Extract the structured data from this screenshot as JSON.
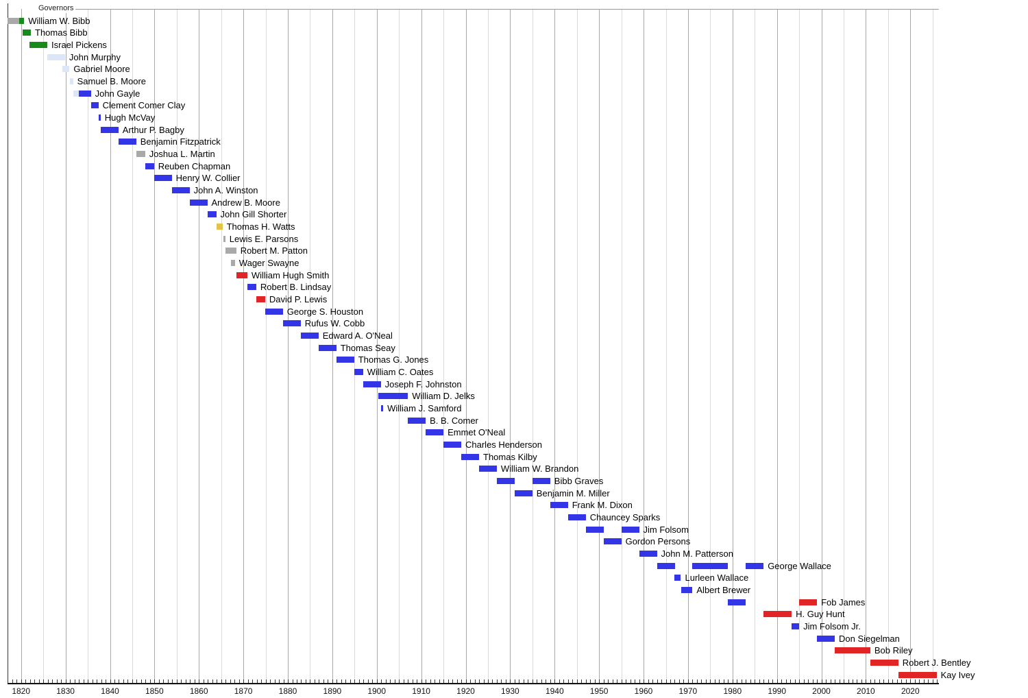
{
  "chart_data": {
    "type": "bar",
    "subtype": "timeline-gantt",
    "title": "Governors",
    "unit": "year",
    "x_axis": {
      "min": 1817,
      "max": 2026.5,
      "gridline_step_years": 5,
      "minor_tick_step_years": 1,
      "major_tick_labels": [
        "1820",
        "1830",
        "1840",
        "1850",
        "1860",
        "1870",
        "1880",
        "1890",
        "1900",
        "1910",
        "1920",
        "1930",
        "1940",
        "1950",
        "1960",
        "1970",
        "1980",
        "1990",
        "2000",
        "2010",
        "2020"
      ]
    },
    "bar_colors": {
      "blue": "#3535e8",
      "red": "#e12424",
      "green": "#1a8a1a",
      "gray": "#a9a9a9",
      "lightblue": "#dce6f7",
      "yellow": "#e2c449"
    },
    "legend_position": "none",
    "grid": "on",
    "rows": [
      {
        "name": "William W. Bibb",
        "segments": [
          [
            1817.0,
            1819.6,
            "gray"
          ],
          [
            1819.6,
            1820.7,
            "green"
          ]
        ]
      },
      {
        "name": "Thomas Bibb",
        "segments": [
          [
            1820.4,
            1822.2,
            "green"
          ]
        ]
      },
      {
        "name": "Israel Pickens",
        "segments": [
          [
            1821.9,
            1825.9,
            "green"
          ]
        ]
      },
      {
        "name": "John Murphy",
        "segments": [
          [
            1825.9,
            1829.9,
            "lightblue"
          ]
        ]
      },
      {
        "name": "Gabriel Moore",
        "segments": [
          [
            1829.3,
            1830.9,
            "lightblue"
          ]
        ]
      },
      {
        "name": "Samuel B. Moore",
        "segments": [
          [
            1831.0,
            1831.7,
            "lightblue"
          ]
        ]
      },
      {
        "name": "John Gayle",
        "segments": [
          [
            1831.7,
            1833.0,
            "lightblue"
          ],
          [
            1833.0,
            1835.7,
            "blue"
          ]
        ]
      },
      {
        "name": "Clement Comer Clay",
        "segments": [
          [
            1835.7,
            1837.4,
            "blue"
          ]
        ]
      },
      {
        "name": "Hugh McVay",
        "segments": [
          [
            1837.4,
            1837.9,
            "blue"
          ]
        ]
      },
      {
        "name": "Arthur P. Bagby",
        "segments": [
          [
            1837.9,
            1841.9,
            "blue"
          ]
        ]
      },
      {
        "name": "Benjamin Fitzpatrick",
        "segments": [
          [
            1841.9,
            1845.9,
            "blue"
          ]
        ]
      },
      {
        "name": "Joshua L. Martin",
        "segments": [
          [
            1845.9,
            1847.9,
            "gray"
          ]
        ]
      },
      {
        "name": "Reuben Chapman",
        "segments": [
          [
            1847.9,
            1849.9,
            "blue"
          ]
        ]
      },
      {
        "name": "Henry W. Collier",
        "segments": [
          [
            1849.9,
            1853.9,
            "blue"
          ]
        ]
      },
      {
        "name": "John A. Winston",
        "segments": [
          [
            1853.9,
            1857.9,
            "blue"
          ]
        ]
      },
      {
        "name": "Andrew B. Moore",
        "segments": [
          [
            1857.9,
            1861.9,
            "blue"
          ]
        ]
      },
      {
        "name": "John Gill Shorter",
        "segments": [
          [
            1861.9,
            1863.9,
            "blue"
          ]
        ]
      },
      {
        "name": "Thomas H. Watts",
        "segments": [
          [
            1863.9,
            1865.3,
            "yellow"
          ]
        ]
      },
      {
        "name": "Lewis E. Parsons",
        "segments": [
          [
            1865.5,
            1865.95,
            "gray"
          ]
        ]
      },
      {
        "name": "Robert M. Patton",
        "segments": [
          [
            1865.95,
            1868.4,
            "gray"
          ]
        ]
      },
      {
        "name": "Wager Swayne",
        "segments": [
          [
            1867.2,
            1868.1,
            "gray"
          ]
        ]
      },
      {
        "name": "William Hugh Smith",
        "segments": [
          [
            1868.5,
            1870.9,
            "red"
          ]
        ]
      },
      {
        "name": "Robert B. Lindsay",
        "segments": [
          [
            1870.9,
            1872.9,
            "blue"
          ]
        ]
      },
      {
        "name": "David P. Lewis",
        "segments": [
          [
            1872.9,
            1874.9,
            "red"
          ]
        ]
      },
      {
        "name": "George S. Houston",
        "segments": [
          [
            1874.9,
            1878.9,
            "blue"
          ]
        ]
      },
      {
        "name": "Rufus W. Cobb",
        "segments": [
          [
            1878.9,
            1882.9,
            "blue"
          ]
        ]
      },
      {
        "name": "Edward A. O'Neal",
        "segments": [
          [
            1882.9,
            1886.9,
            "blue"
          ]
        ]
      },
      {
        "name": "Thomas Seay",
        "segments": [
          [
            1886.9,
            1890.9,
            "blue"
          ]
        ]
      },
      {
        "name": "Thomas G. Jones",
        "segments": [
          [
            1890.9,
            1894.9,
            "blue"
          ]
        ]
      },
      {
        "name": "William C. Oates",
        "segments": [
          [
            1894.9,
            1896.9,
            "blue"
          ]
        ]
      },
      {
        "name": "Joseph F. Johnston",
        "segments": [
          [
            1896.9,
            1900.9,
            "blue"
          ]
        ]
      },
      {
        "name": "William D. Jelks",
        "segments": [
          [
            1900.3,
            1907.0,
            "blue"
          ]
        ]
      },
      {
        "name": "William J. Samford",
        "segments": [
          [
            1900.9,
            1901.45,
            "blue"
          ]
        ]
      },
      {
        "name": "B. B. Comer",
        "segments": [
          [
            1907.0,
            1911.0,
            "blue"
          ]
        ]
      },
      {
        "name": "Emmet O'Neal",
        "segments": [
          [
            1911.0,
            1915.0,
            "blue"
          ]
        ]
      },
      {
        "name": "Charles Henderson",
        "segments": [
          [
            1915.0,
            1919.0,
            "blue"
          ]
        ]
      },
      {
        "name": "Thomas Kilby",
        "segments": [
          [
            1919.0,
            1923.0,
            "blue"
          ]
        ]
      },
      {
        "name": "William W. Brandon",
        "segments": [
          [
            1923.0,
            1927.0,
            "blue"
          ]
        ]
      },
      {
        "name": "Bibb Graves",
        "segments": [
          [
            1927.0,
            1931.0,
            "blue"
          ],
          [
            1935.0,
            1939.0,
            "blue"
          ]
        ]
      },
      {
        "name": "Benjamin M. Miller",
        "segments": [
          [
            1931.0,
            1935.0,
            "blue"
          ]
        ]
      },
      {
        "name": "Frank M. Dixon",
        "segments": [
          [
            1939.0,
            1943.0,
            "blue"
          ]
        ]
      },
      {
        "name": "Chauncey Sparks",
        "segments": [
          [
            1943.0,
            1947.0,
            "blue"
          ]
        ]
      },
      {
        "name": "Jim Folsom",
        "segments": [
          [
            1947.0,
            1951.0,
            "blue"
          ],
          [
            1955.0,
            1959.0,
            "blue"
          ]
        ]
      },
      {
        "name": "Gordon Persons",
        "segments": [
          [
            1951.0,
            1955.0,
            "blue"
          ]
        ]
      },
      {
        "name": "John M. Patterson",
        "segments": [
          [
            1959.0,
            1963.0,
            "blue"
          ]
        ]
      },
      {
        "name": "George Wallace",
        "segments": [
          [
            1963.0,
            1967.0,
            "blue"
          ],
          [
            1971.0,
            1979.0,
            "blue"
          ],
          [
            1983.0,
            1987.0,
            "blue"
          ]
        ]
      },
      {
        "name": "Lurleen Wallace",
        "segments": [
          [
            1967.0,
            1968.4,
            "blue"
          ]
        ]
      },
      {
        "name": "Albert Brewer",
        "segments": [
          [
            1968.4,
            1971.0,
            "blue"
          ]
        ]
      },
      {
        "name": "Fob James",
        "segments": [
          [
            1979.0,
            1983.0,
            "blue"
          ],
          [
            1995.0,
            1999.0,
            "red"
          ]
        ]
      },
      {
        "name": "H. Guy Hunt",
        "segments": [
          [
            1987.0,
            1993.3,
            "red"
          ]
        ]
      },
      {
        "name": "Jim Folsom Jr.",
        "segments": [
          [
            1993.3,
            1995.0,
            "blue"
          ]
        ]
      },
      {
        "name": "Don Siegelman",
        "segments": [
          [
            1999.0,
            2003.0,
            "blue"
          ]
        ]
      },
      {
        "name": "Bob Riley",
        "segments": [
          [
            2003.0,
            2011.0,
            "red"
          ]
        ]
      },
      {
        "name": "Robert J. Bentley",
        "segments": [
          [
            2011.0,
            2017.3,
            "red"
          ]
        ]
      },
      {
        "name": "Kay Ivey",
        "segments": [
          [
            2017.3,
            2025.9,
            "red"
          ]
        ]
      }
    ]
  }
}
